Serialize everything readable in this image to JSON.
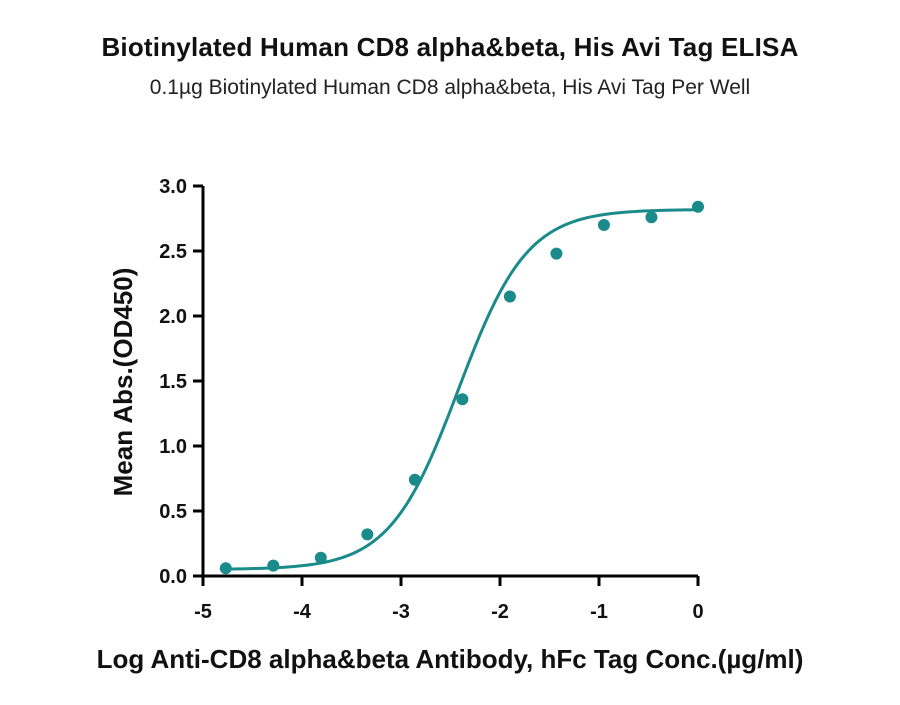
{
  "chart_data": {
    "type": "scatter",
    "title": "Biotinylated Human CD8 alpha&beta, His Avi Tag ELISA",
    "subtitle": "0.1µg Biotinylated Human CD8 alpha&beta, His Avi Tag Per Well",
    "xlabel": "Log Anti-CD8 alpha&beta Antibody, hFc Tag Conc.(µg/ml)",
    "ylabel": "Mean Abs.(OD450)",
    "xlim": [
      -5,
      0
    ],
    "ylim": [
      0,
      3.0
    ],
    "xticks": [
      -5,
      -4,
      -3,
      -2,
      -1,
      0
    ],
    "xtick_labels": [
      "-5",
      "-4",
      "-3",
      "-2",
      "-1",
      "0"
    ],
    "yticks": [
      0,
      0.5,
      1.0,
      1.5,
      2.0,
      2.5,
      3.0
    ],
    "ytick_labels": [
      "0.0",
      "0.5",
      "1.0",
      "1.5",
      "2.0",
      "2.5",
      "3.0"
    ],
    "grid": false,
    "legend": "none",
    "color": "#1a8a8a",
    "series": [
      {
        "x": [
          -4.77,
          -4.29,
          -3.81,
          -3.34,
          -2.86,
          -2.38,
          -1.9,
          -1.43,
          -0.95,
          -0.47,
          0.0
        ],
        "values": [
          0.06,
          0.08,
          0.14,
          0.32,
          0.74,
          1.36,
          2.15,
          2.48,
          2.7,
          2.76,
          2.84
        ]
      }
    ],
    "fit_curve": {
      "model": "4PL",
      "bottom": 0.05,
      "top": 2.82,
      "logEC50": -2.42,
      "hill": 1.25
    }
  }
}
